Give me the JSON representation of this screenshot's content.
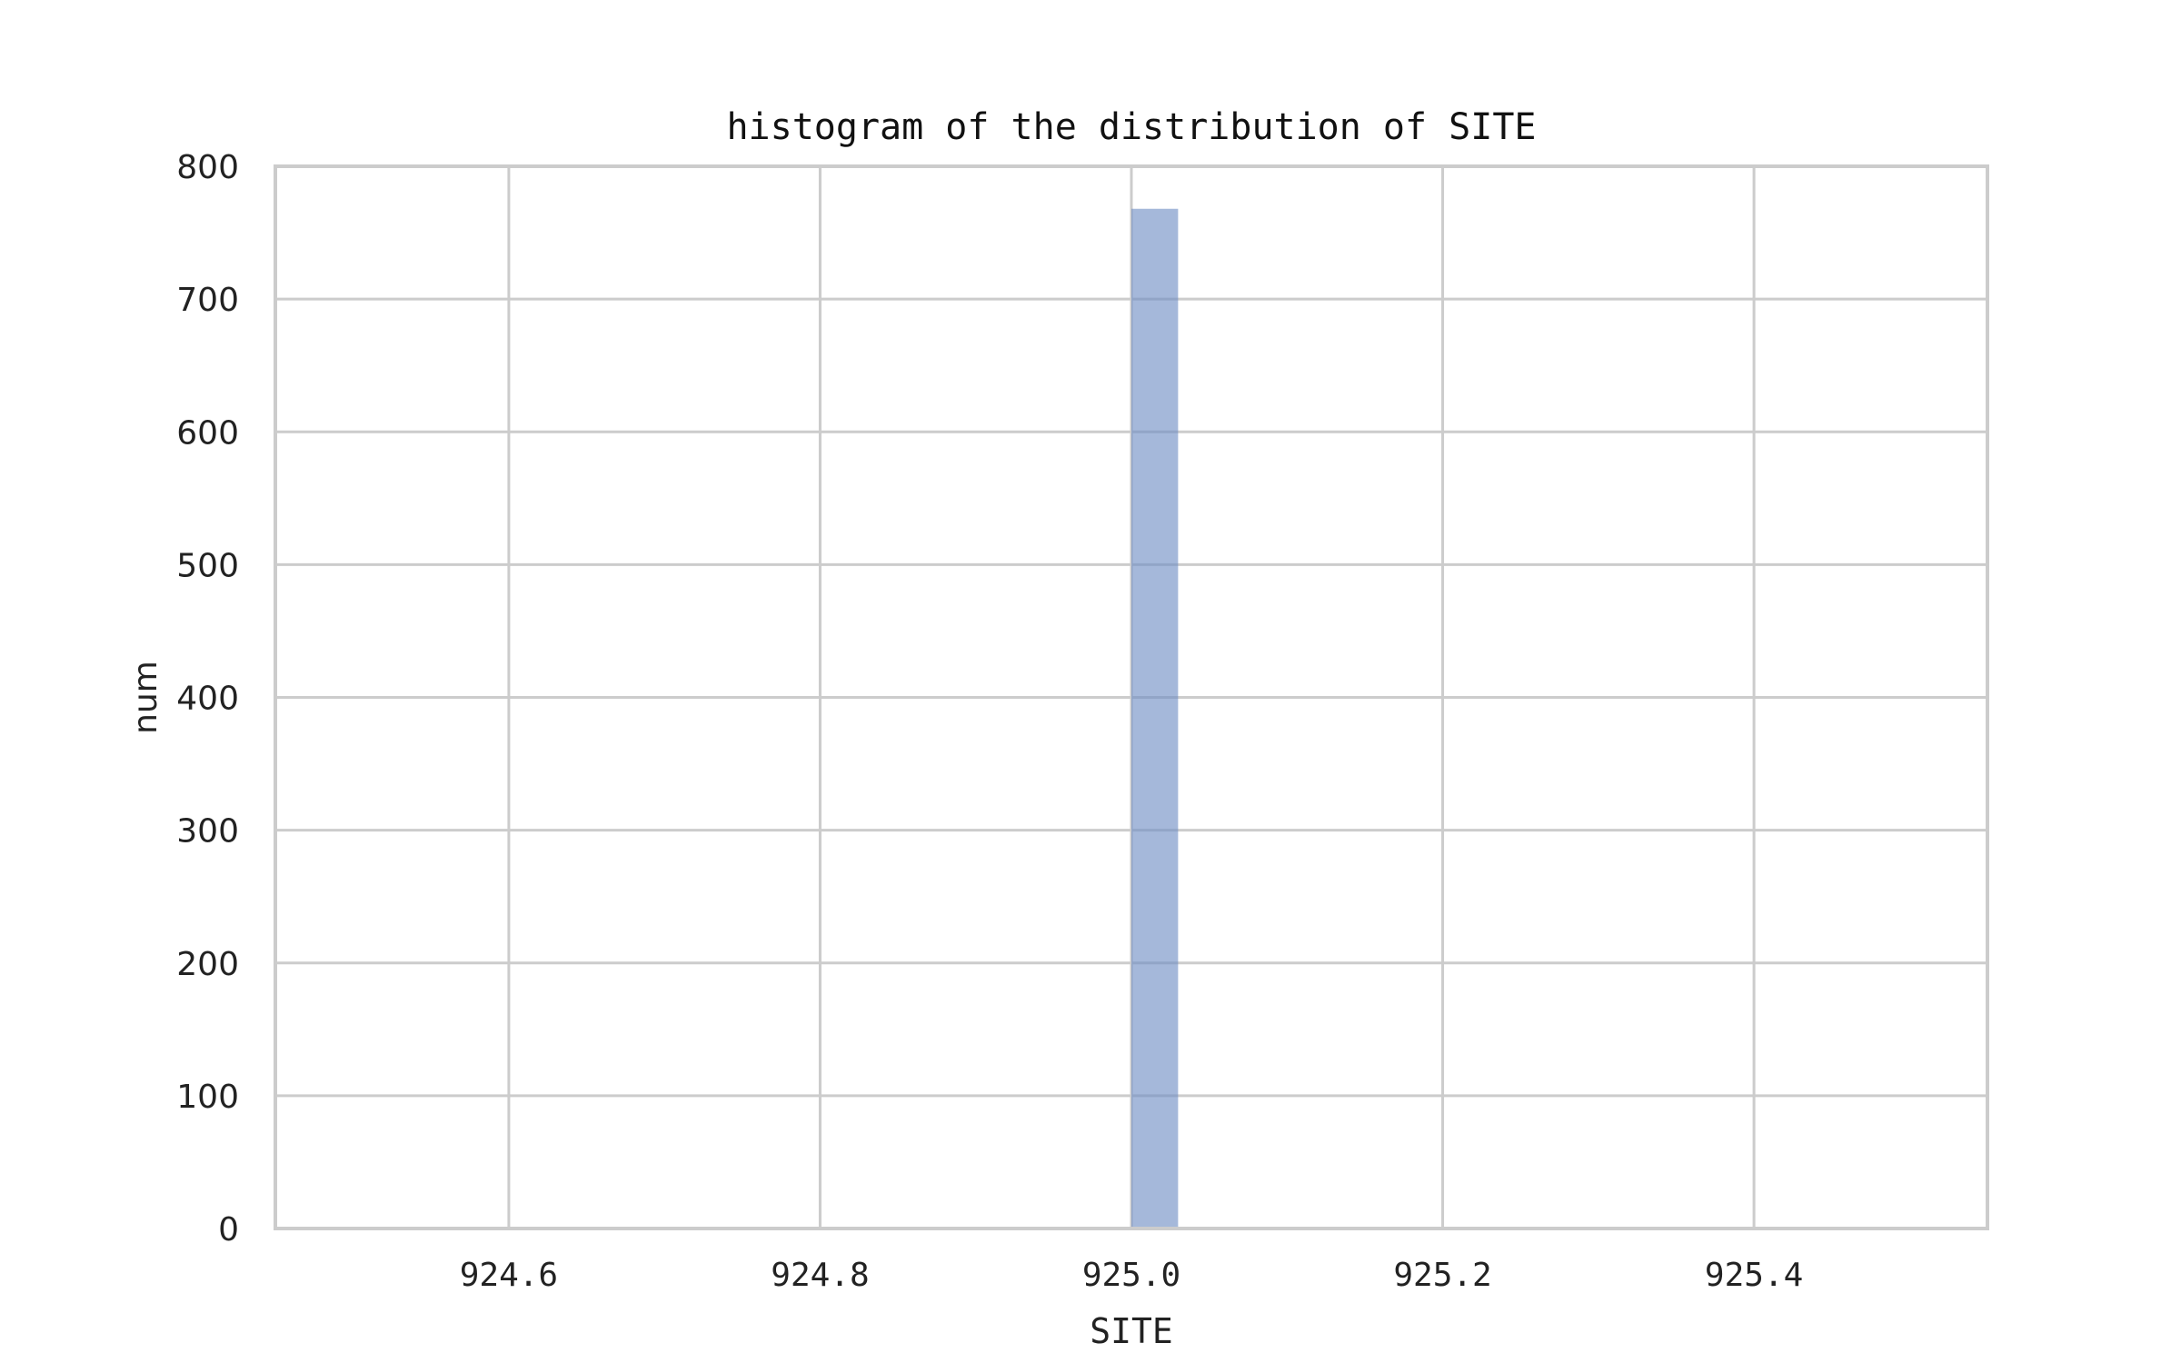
{
  "chart_data": {
    "type": "bar",
    "title": "histogram of the distribution of SITE",
    "xlabel": "SITE",
    "ylabel": "num",
    "xlim": [
      924.45,
      925.55
    ],
    "ylim": [
      0,
      800
    ],
    "x_ticks": [
      924.6,
      924.8,
      925.0,
      925.2,
      925.4
    ],
    "x_tick_labels": [
      "924.6",
      "924.8",
      "925.0",
      "925.2",
      "925.4"
    ],
    "y_ticks": [
      0,
      100,
      200,
      300,
      400,
      500,
      600,
      700,
      800
    ],
    "y_tick_labels": [
      "0",
      "100",
      "200",
      "300",
      "400",
      "500",
      "600",
      "700",
      "800"
    ],
    "grid": true,
    "bars": [
      {
        "x_start": 925.0,
        "x_end": 925.03,
        "value": 768
      }
    ],
    "colors": {
      "bar": "#6d8cc4",
      "grid": "#cccccc",
      "frame": "#cccccc"
    }
  }
}
